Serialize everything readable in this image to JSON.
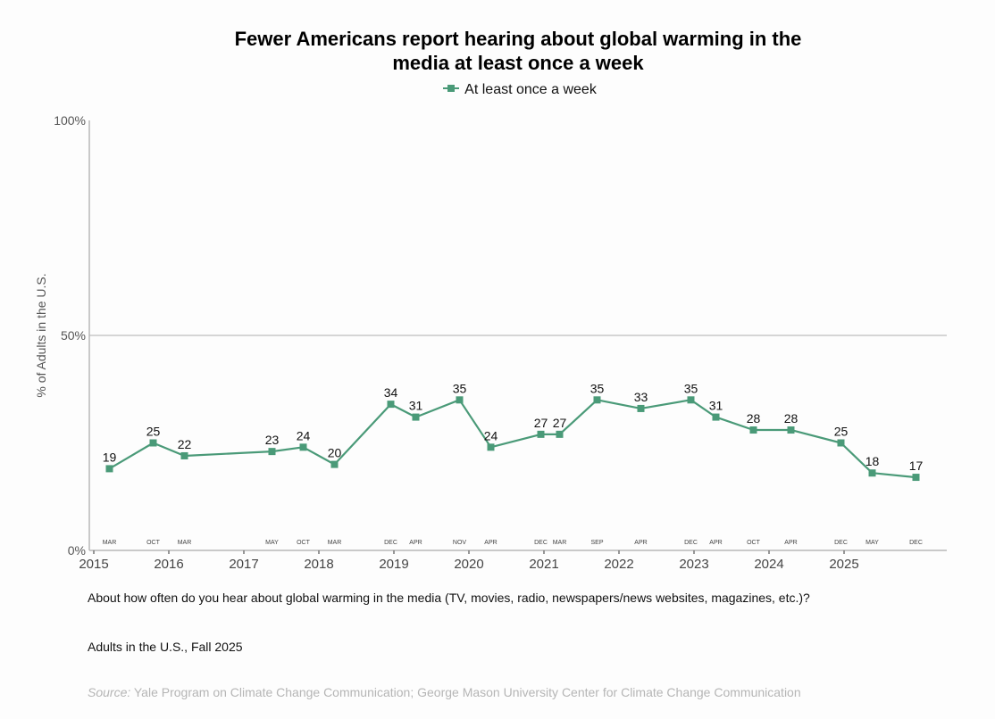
{
  "accent": "#4a9a78",
  "chart_data": {
    "type": "line",
    "title": "Fewer Americans report hearing about global warming in the media at least once a week",
    "title_lines": [
      "Fewer Americans report hearing about global warming in the",
      "media at least once a week"
    ],
    "legend": {
      "position": "top-center",
      "entries": [
        "At least once a week"
      ]
    },
    "xlabel": "",
    "ylabel": "% of Adults in the U.S.",
    "ylim": [
      0,
      100
    ],
    "yticks": [
      0,
      50,
      100
    ],
    "ytick_labels": [
      "0%",
      "50%",
      "100%"
    ],
    "xlim": [
      2015.0,
      2026.4
    ],
    "xticks": [
      2015,
      2016,
      2017,
      2018,
      2019,
      2020,
      2021,
      2022,
      2023,
      2024,
      2025
    ],
    "xtick_labels": [
      "2015",
      "2016",
      "2017",
      "2018",
      "2019",
      "2020",
      "2021",
      "2022",
      "2023",
      "2024",
      "2025"
    ],
    "gridlines": [
      50
    ],
    "series": [
      {
        "name": "At least once a week",
        "points": [
          {
            "date": "2015-03",
            "month_label": "MAR",
            "value": 19
          },
          {
            "date": "2015-10",
            "month_label": "OCT",
            "value": 25
          },
          {
            "date": "2016-03",
            "month_label": "MAR",
            "value": 22
          },
          {
            "date": "2017-05",
            "month_label": "MAY",
            "value": 23
          },
          {
            "date": "2017-10",
            "month_label": "OCT",
            "value": 24
          },
          {
            "date": "2018-03",
            "month_label": "MAR",
            "value": 20
          },
          {
            "date": "2018-12",
            "month_label": "DEC",
            "value": 34
          },
          {
            "date": "2019-04",
            "month_label": "APR",
            "value": 31
          },
          {
            "date": "2019-11",
            "month_label": "NOV",
            "value": 35
          },
          {
            "date": "2020-04",
            "month_label": "APR",
            "value": 24
          },
          {
            "date": "2020-12",
            "month_label": "DEC",
            "value": 27
          },
          {
            "date": "2021-03",
            "month_label": "MAR",
            "value": 27
          },
          {
            "date": "2021-09",
            "month_label": "SEP",
            "value": 35
          },
          {
            "date": "2022-04",
            "month_label": "APR",
            "value": 33
          },
          {
            "date": "2022-12",
            "month_label": "DEC",
            "value": 35
          },
          {
            "date": "2023-04",
            "month_label": "APR",
            "value": 31
          },
          {
            "date": "2023-10",
            "month_label": "OCT",
            "value": 28
          },
          {
            "date": "2024-04",
            "month_label": "APR",
            "value": 28
          },
          {
            "date": "2024-12",
            "month_label": "DEC",
            "value": 25
          },
          {
            "date": "2025-05",
            "month_label": "MAY",
            "value": 18
          },
          {
            "date": "2025-12",
            "month_label": "DEC",
            "value": 17
          }
        ]
      }
    ]
  },
  "notes": {
    "question": "About how often do you hear about global warming in the media (TV, movies, radio, newspapers/news websites, magazines, etc.)?",
    "sample": "Adults in the U.S., Fall 2025",
    "source_label": "Source:",
    "source_text": " Yale Program on Climate Change Communication; George Mason University Center for Climate Change Communication"
  }
}
